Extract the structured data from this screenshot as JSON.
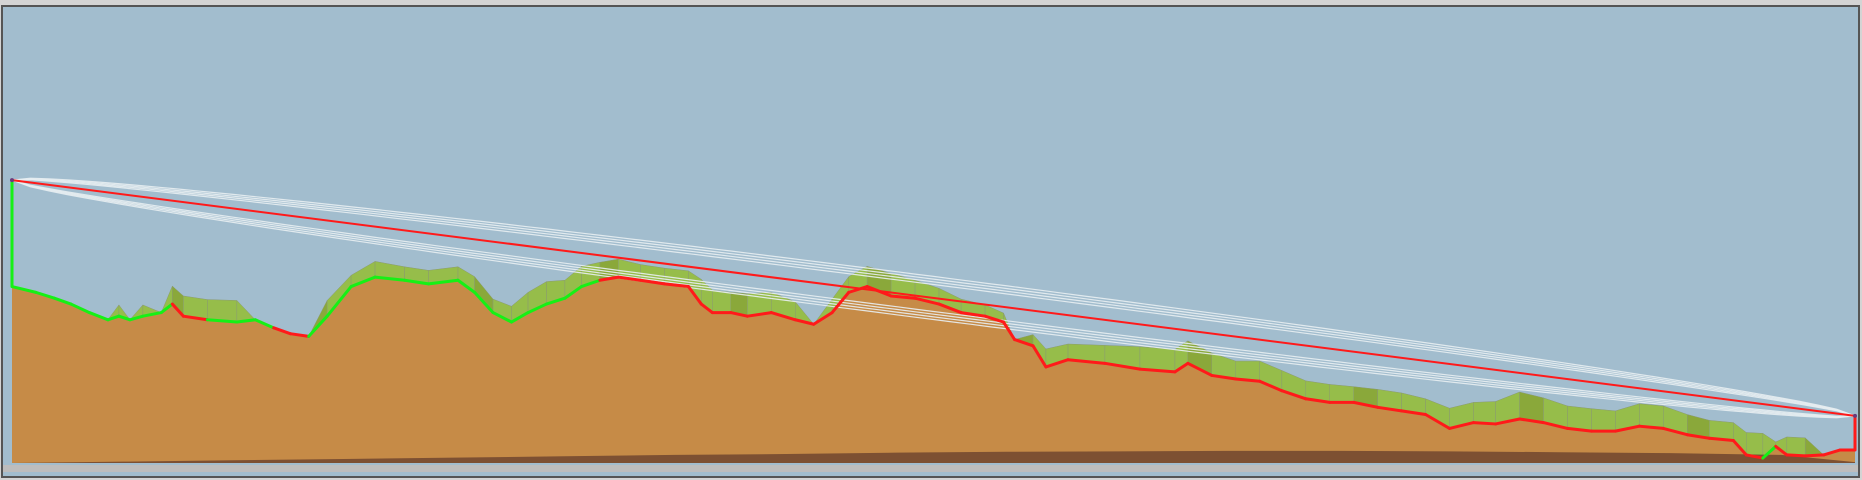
{
  "chart_data": {
    "type": "area",
    "title": "",
    "xlabel": "",
    "ylabel": "",
    "xlim": [
      0,
      100
    ],
    "ylim": [
      0,
      100
    ],
    "grid": false,
    "legend": "none",
    "colors": {
      "sky": "#a2bdce",
      "terrain": "#c68b47",
      "subsoil": "#7d5032",
      "clutter": "#96bd4a",
      "clutter_dark": "#8aa83a",
      "los_line": "#ff1a1a",
      "clear_line": "#16f016",
      "fresnel": "#e8eef2",
      "frame": "#555555",
      "bottom_strip": "#bdbdbd"
    },
    "link": {
      "start": {
        "x": 0,
        "elevation": 63
      },
      "end": {
        "x": 100,
        "elevation": 10.5
      },
      "fresnel_offsets": [
        3.0,
        3.6,
        4.2,
        4.8
      ]
    },
    "terrain": {
      "x": [
        0,
        1.3,
        2.3,
        3.2,
        4.2,
        5.2,
        5.8,
        6.4,
        7.1,
        8.1,
        8.7,
        9.3,
        10.6,
        12.2,
        13.2,
        14.2,
        15.1,
        16.1,
        17.1,
        18.4,
        19.7,
        21.3,
        22.6,
        24.2,
        25.1,
        26.1,
        27.1,
        28.0,
        29.0,
        30.0,
        30.9,
        31.9,
        32.9,
        34.1,
        35.4,
        36.7,
        37.4,
        38.0,
        39.0,
        39.9,
        41.2,
        42.5,
        43.5,
        44.5,
        45.4,
        46.4,
        47.7,
        49.0,
        50.3,
        51.5,
        52.8,
        53.8,
        54.4,
        55.4,
        56.1,
        57.3,
        59.3,
        61.2,
        63.1,
        63.8,
        65.1,
        66.4,
        67.7,
        68.9,
        70.2,
        71.5,
        72.8,
        74.1,
        75.4,
        76.7,
        78.0,
        79.3,
        80.5,
        81.8,
        83.1,
        84.4,
        85.7,
        87.0,
        88.3,
        89.6,
        90.9,
        92.1,
        93.4,
        94.1,
        95.0,
        95.7,
        96.3,
        97.3,
        98.3,
        99.2,
        100
      ],
      "elevation": [
        39.3,
        38.0,
        36.7,
        35.4,
        33.5,
        31.9,
        32.7,
        31.9,
        32.7,
        33.5,
        35.4,
        32.7,
        31.9,
        31.4,
        31.9,
        30.1,
        28.8,
        28.2,
        32.7,
        39.3,
        41.4,
        40.7,
        39.9,
        40.7,
        38.0,
        33.5,
        31.4,
        33.5,
        35.4,
        36.7,
        39.3,
        40.7,
        41.4,
        40.7,
        39.9,
        39.3,
        35.4,
        33.5,
        33.5,
        32.7,
        33.5,
        31.9,
        30.9,
        33.5,
        38.0,
        39.3,
        37.2,
        36.7,
        35.4,
        33.5,
        32.7,
        31.4,
        27.5,
        26.1,
        21.4,
        23.0,
        22.2,
        20.9,
        20.3,
        22.2,
        19.5,
        18.7,
        18.2,
        16.1,
        14.3,
        13.5,
        13.5,
        12.4,
        11.6,
        10.8,
        7.7,
        9.0,
        8.7,
        9.8,
        9.0,
        7.7,
        7.1,
        7.1,
        8.2,
        7.7,
        6.3,
        5.5,
        5.0,
        1.8,
        1.1,
        3.7,
        1.8,
        1.6,
        1.8,
        2.9,
        2.9
      ],
      "clutter_height": [
        0,
        0,
        0,
        0,
        0,
        0,
        2.5,
        0,
        2.5,
        0,
        4,
        4.5,
        4.5,
        4.8,
        0,
        0,
        0,
        0,
        3.5,
        2.5,
        3.5,
        3.0,
        3.0,
        3.0,
        3.5,
        3.0,
        3.5,
        4.5,
        5.0,
        4.0,
        4.5,
        4.0,
        4.0,
        3.5,
        3.5,
        3.5,
        5.5,
        5.0,
        4.5,
        5.0,
        4.5,
        4.0,
        0,
        3.0,
        3.5,
        4.5,
        5.0,
        4.0,
        3.5,
        3.0,
        2.5,
        2.0,
        0,
        2.5,
        4.0,
        3.5,
        4.0,
        5.0,
        5.0,
        5.0,
        5.0,
        4.0,
        4.5,
        4.5,
        4.0,
        4.0,
        3.5,
        4.0,
        4.0,
        3.5,
        4.5,
        4.5,
        5.0,
        6.0,
        5.5,
        5.0,
        5.0,
        4.5,
        5.0,
        5.0,
        4.5,
        4.0,
        4.0,
        5.0,
        5.5,
        1.0,
        4.0,
        4.0,
        0,
        0,
        0
      ],
      "subsoil": [
        0,
        0.3,
        0.6,
        0.9,
        1.2,
        1.5,
        1.8,
        2.0,
        2.3,
        2.5,
        2.6,
        2.7,
        2.7,
        2.6,
        2.4,
        2.2,
        1.8,
        0.2
      ],
      "subsoil_x": [
        0,
        6,
        12,
        18,
        24,
        30,
        36,
        42,
        48,
        54,
        60,
        66,
        72,
        78,
        84,
        90,
        96,
        100
      ]
    },
    "path_status": [
      {
        "from": 0,
        "to": 8.7,
        "state": "clear"
      },
      {
        "from": 8.7,
        "to": 10.6,
        "state": "obstructed"
      },
      {
        "from": 10.6,
        "to": 14.2,
        "state": "clear"
      },
      {
        "from": 14.2,
        "to": 16.1,
        "state": "obstructed"
      },
      {
        "from": 16.1,
        "to": 31.9,
        "state": "clear"
      },
      {
        "from": 31.9,
        "to": 95.0,
        "state": "obstructed"
      },
      {
        "from": 95.0,
        "to": 95.7,
        "state": "clear"
      },
      {
        "from": 95.7,
        "to": 100,
        "state": "obstructed"
      }
    ]
  }
}
